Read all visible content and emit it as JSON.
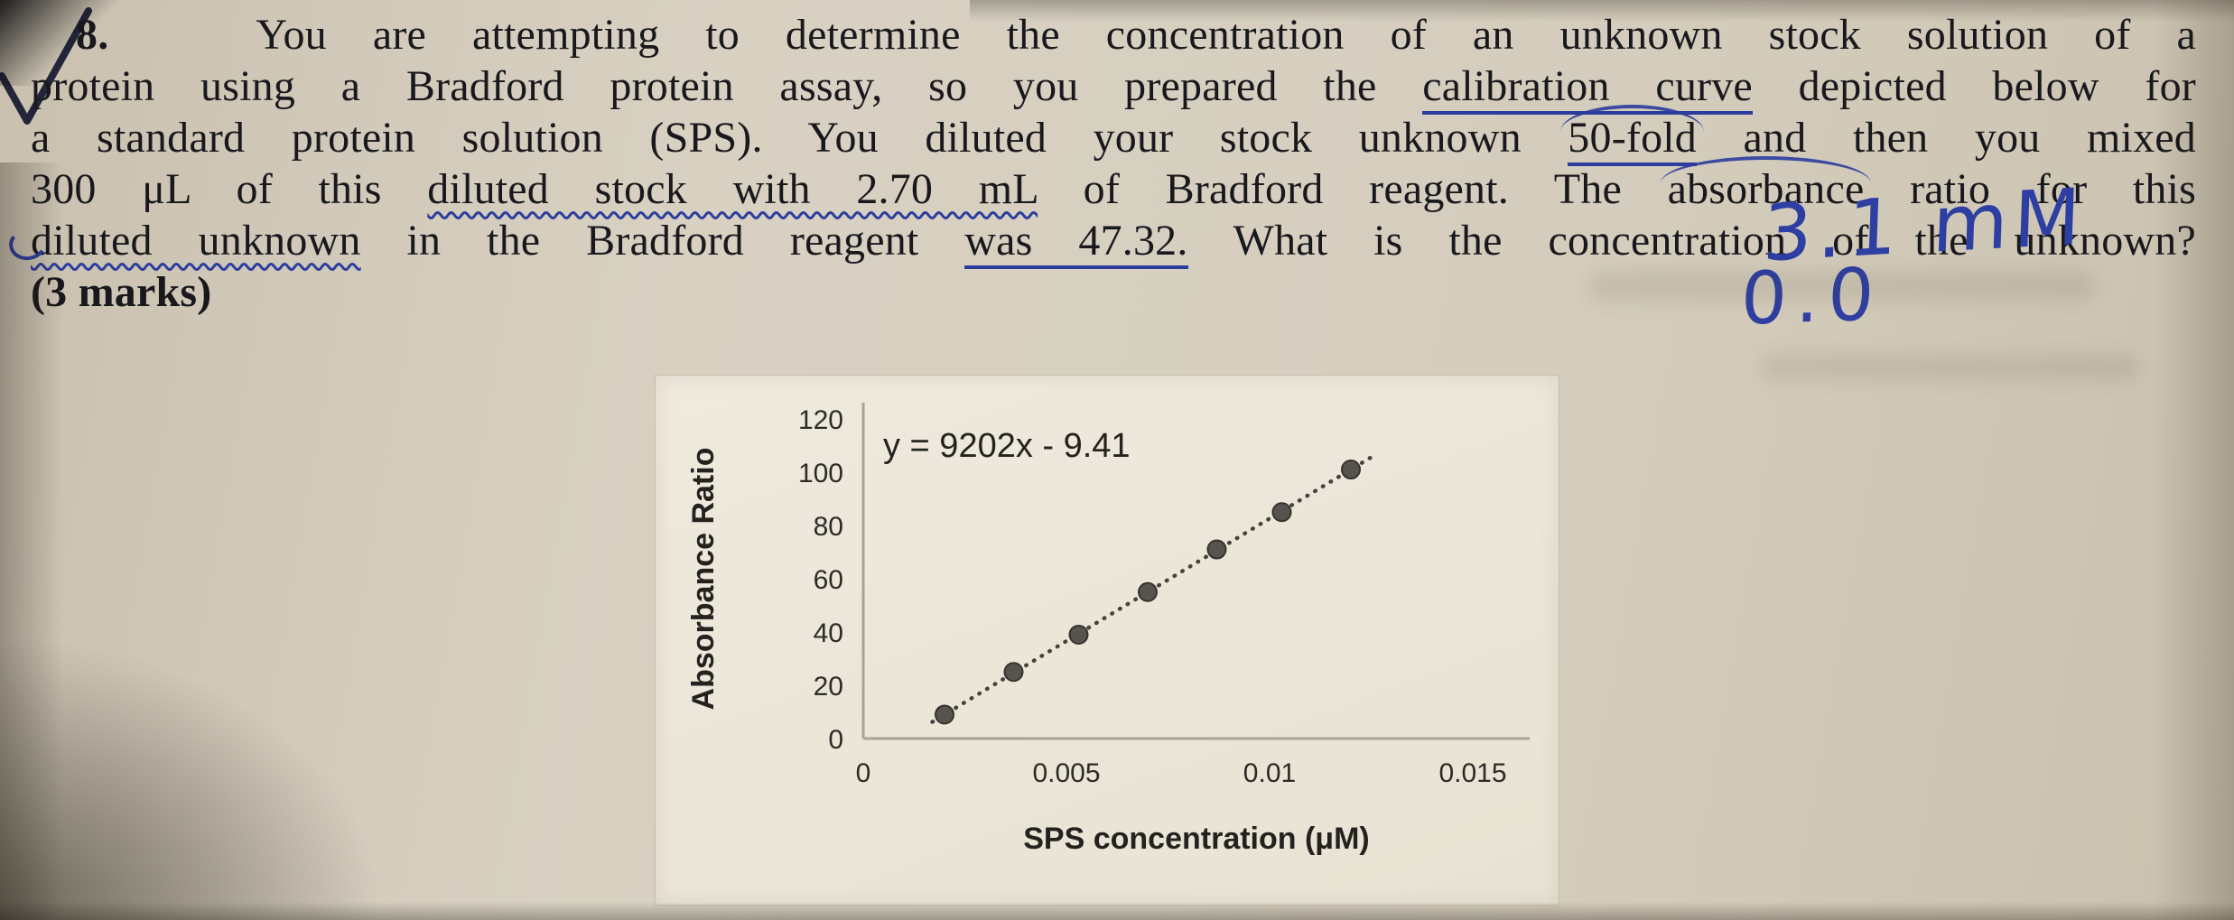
{
  "question": {
    "number": "8.",
    "line1": "You are attempting to determine the concentration of an unknown stock solution of a",
    "line2a": "protein using a Bradford protein assay, so you prepared the ",
    "line2b": "calibration curve",
    "line2c": " depicted below for",
    "line3a": "a standard protein solution (SPS).  You diluted your stock unknown ",
    "line3b": "50-fold",
    "line3c": " and then you mixed",
    "line4a": "300 μL of this ",
    "line4b": "diluted stock with 2.70 mL",
    "line4c": " of Bradford reagent.  The ",
    "line4d": "absorbance",
    "line4e": " ratio for this",
    "line5a": "diluted unknown",
    "line5b": " in the Bradford reagent ",
    "line5c": "was 47.32.",
    "line5d": "  What is the concentration of the unknown?",
    "marks": "(3 marks)"
  },
  "handwriting": {
    "answer_line_1": "3.1 mM",
    "answer_line_2": "0.0"
  },
  "pen_ink_color": "#2c3d9e",
  "chart_data": {
    "type": "scatter",
    "title": "",
    "equation_label": "y = 9202x - 9.41",
    "xlabel": "SPS concentration (μM)",
    "ylabel": "Absorbance Ratio",
    "x": [
      0.002,
      0.0037,
      0.0053,
      0.007,
      0.0087,
      0.0103,
      0.012
    ],
    "y": [
      9,
      25,
      39,
      55,
      71,
      85,
      101
    ],
    "trendline": {
      "type": "linear",
      "slope": 9202,
      "intercept": -9.41,
      "style": "dotted",
      "x_start": 0.0017,
      "x_end": 0.0126
    },
    "x_ticks": [
      "0",
      "0.005",
      "0.01",
      "0.015"
    ],
    "x_tick_values": [
      0,
      0.005,
      0.01,
      0.015
    ],
    "y_ticks": [
      "0",
      "20",
      "40",
      "60",
      "80",
      "100",
      "120"
    ],
    "y_tick_values": [
      0,
      20,
      40,
      60,
      80,
      100,
      120
    ],
    "xlim": [
      0,
      0.015
    ],
    "ylim": [
      0,
      120
    ],
    "grid": false,
    "legend": false,
    "marker_color": "#56544c",
    "marker_edge_color": "#35332d",
    "line_color": "#45433c",
    "axis_color": "#aaa393"
  }
}
